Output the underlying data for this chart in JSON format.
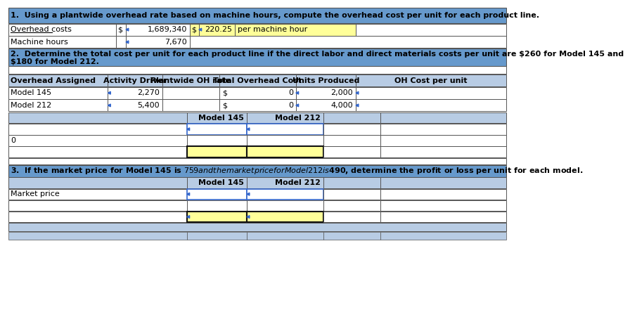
{
  "fig_width": 9.18,
  "fig_height": 5.73,
  "bg_color": "#ffffff",
  "blue_header_color": "#6699cc",
  "light_blue_cell_color": "#b8cce4",
  "yellow_cell_color": "#ffff99",
  "white_cell_color": "#ffffff",
  "header1_text": "1.  Using a plantwide overhead rate based on machine hours, compute the overhead cost per unit for each product line.",
  "header2_text": "2.  Determine the total cost per unit for each product line if the direct labor and direct materials costs per unit are $260 for Model 145 and\n$180 for Model 212.",
  "header3_text": "3.  If the market price for Model 145 is $759 and the market price for Model 212 is $490, determine the profit or loss per unit for each model.",
  "section2_col_headers": [
    "Overhead Assigned",
    "Activity Driver",
    "Plantwide OH rate",
    "Total Overhead Cost",
    "Units Produced",
    "OH Cost per unit"
  ],
  "section2_rows": [
    {
      "label": "Model 145",
      "driver": "2,270",
      "total": "$",
      "total_val": "0",
      "units": "2,000"
    },
    {
      "label": "Model 212",
      "driver": "5,400",
      "total": "$",
      "total_val": "0",
      "units": "4,000"
    }
  ]
}
